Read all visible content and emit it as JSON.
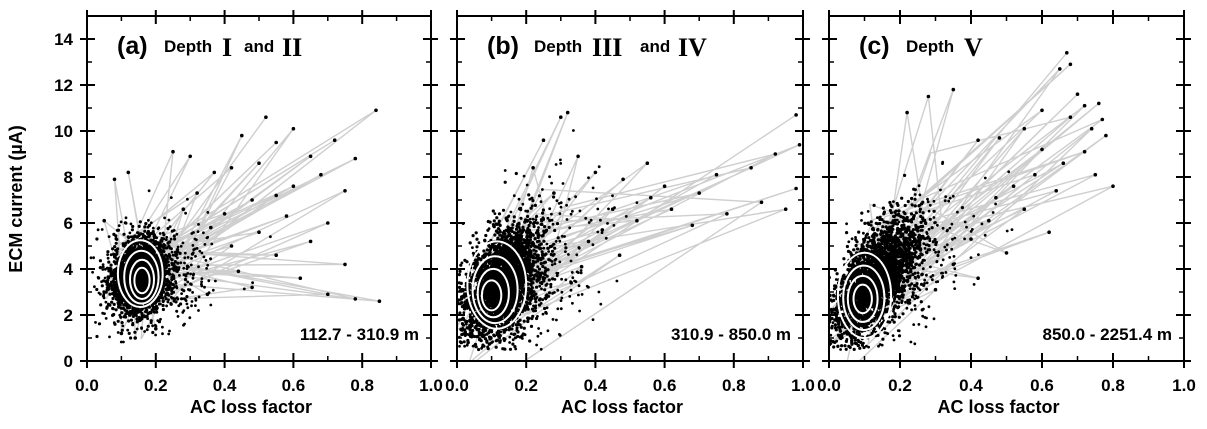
{
  "chart_data": {
    "type": "scatter",
    "xlabel": "AC loss factor",
    "ylabel": "ECM current (µA)",
    "xlim": [
      0.0,
      1.0
    ],
    "ylim": [
      0,
      15
    ],
    "x_ticks": [
      "0.0",
      "0.2",
      "0.4",
      "0.6",
      "0.8",
      "1.0"
    ],
    "y_ticks": [
      "0",
      "2",
      "4",
      "6",
      "8",
      "10",
      "12",
      "14"
    ],
    "panels": [
      {
        "letter": "(a)",
        "depth_word": "Depth",
        "roman_a": "I",
        "and_word": "and",
        "roman_b": "II",
        "range": "112.7 - 310.9 m",
        "core": {
          "x": 0.155,
          "y": 3.7,
          "sx": 0.04,
          "sy": 0.75,
          "corr": 0.15
        },
        "contours": [
          {
            "cx": 0.155,
            "cy": 3.8,
            "rx": 0.065,
            "ry": 1.45
          },
          {
            "cx": 0.158,
            "cy": 3.65,
            "rx": 0.05,
            "ry": 1.15
          },
          {
            "cx": 0.16,
            "cy": 3.55,
            "rx": 0.035,
            "ry": 0.85
          },
          {
            "cx": 0.16,
            "cy": 3.5,
            "rx": 0.022,
            "ry": 0.55
          }
        ],
        "outliers": [
          [
            0.52,
            10.6
          ],
          [
            0.84,
            10.9
          ],
          [
            0.6,
            10.1
          ],
          [
            0.72,
            9.6
          ],
          [
            0.45,
            9.8
          ],
          [
            0.55,
            9.5
          ],
          [
            0.78,
            8.8
          ],
          [
            0.65,
            8.9
          ],
          [
            0.5,
            8.6
          ],
          [
            0.42,
            8.4
          ],
          [
            0.3,
            8.9
          ],
          [
            0.25,
            9.1
          ],
          [
            0.37,
            8.2
          ],
          [
            0.68,
            8.1
          ],
          [
            0.6,
            7.6
          ],
          [
            0.55,
            7.2
          ],
          [
            0.75,
            7.4
          ],
          [
            0.48,
            7.0
          ],
          [
            0.58,
            6.3
          ],
          [
            0.7,
            6.0
          ],
          [
            0.5,
            5.6
          ],
          [
            0.65,
            5.2
          ],
          [
            0.42,
            5.0
          ],
          [
            0.55,
            4.6
          ],
          [
            0.75,
            4.2
          ],
          [
            0.62,
            3.6
          ],
          [
            0.48,
            3.2
          ],
          [
            0.78,
            2.7
          ],
          [
            0.85,
            2.6
          ],
          [
            0.7,
            2.9
          ],
          [
            0.32,
            7.3
          ],
          [
            0.28,
            6.6
          ],
          [
            0.4,
            6.4
          ],
          [
            0.36,
            5.8
          ],
          [
            0.44,
            3.9
          ],
          [
            0.35,
            2.9
          ],
          [
            0.08,
            7.9
          ],
          [
            0.12,
            8.2
          ],
          [
            0.1,
            1.2
          ],
          [
            0.14,
            1.0
          ],
          [
            0.2,
            1.4
          ],
          [
            0.05,
            6.1
          ]
        ]
      },
      {
        "letter": "(b)",
        "depth_word": "Depth",
        "roman_a": "III",
        "and_word": "and",
        "roman_b": "IV",
        "range": "310.9 - 850.0 m",
        "core": {
          "x": 0.13,
          "y": 3.4,
          "sx": 0.055,
          "sy": 1.2,
          "corr": 0.45
        },
        "contours": [
          {
            "cx": 0.115,
            "cy": 3.3,
            "rx": 0.085,
            "ry": 1.9
          },
          {
            "cx": 0.11,
            "cy": 3.1,
            "rx": 0.065,
            "ry": 1.45
          },
          {
            "cx": 0.105,
            "cy": 2.95,
            "rx": 0.045,
            "ry": 1.05
          },
          {
            "cx": 0.1,
            "cy": 2.85,
            "rx": 0.028,
            "ry": 0.65
          }
        ],
        "outliers": [
          [
            0.98,
            10.7
          ],
          [
            0.99,
            9.4
          ],
          [
            0.92,
            9.0
          ],
          [
            0.85,
            8.4
          ],
          [
            0.75,
            8.1
          ],
          [
            0.98,
            7.5
          ],
          [
            0.95,
            6.6
          ],
          [
            0.88,
            6.9
          ],
          [
            0.7,
            7.3
          ],
          [
            0.6,
            7.6
          ],
          [
            0.55,
            8.6
          ],
          [
            0.48,
            7.9
          ],
          [
            0.4,
            8.2
          ],
          [
            0.35,
            8.9
          ],
          [
            0.3,
            10.6
          ],
          [
            0.32,
            10.8
          ],
          [
            0.45,
            6.6
          ],
          [
            0.52,
            6.1
          ],
          [
            0.42,
            5.7
          ],
          [
            0.38,
            5.2
          ],
          [
            0.47,
            4.6
          ],
          [
            0.36,
            4.1
          ],
          [
            0.33,
            3.4
          ],
          [
            0.62,
            6.6
          ],
          [
            0.78,
            6.4
          ],
          [
            0.68,
            5.9
          ],
          [
            0.28,
            7.3
          ],
          [
            0.25,
            9.6
          ],
          [
            0.22,
            8.4
          ],
          [
            0.56,
            7.1
          ]
        ]
      },
      {
        "letter": "(c)",
        "depth_word": "Depth",
        "roman_a": "V",
        "and_word": "",
        "roman_b": "",
        "range": "850.0 - 2251.4 m",
        "core": {
          "x": 0.13,
          "y": 3.5,
          "sx": 0.06,
          "sy": 1.35,
          "corr": 0.65
        },
        "contours": [
          {
            "cx": 0.1,
            "cy": 2.85,
            "rx": 0.075,
            "ry": 1.85
          },
          {
            "cx": 0.098,
            "cy": 2.75,
            "rx": 0.058,
            "ry": 1.4
          },
          {
            "cx": 0.095,
            "cy": 2.7,
            "rx": 0.042,
            "ry": 1.0
          },
          {
            "cx": 0.095,
            "cy": 2.7,
            "rx": 0.026,
            "ry": 0.62
          }
        ],
        "outliers": [
          [
            0.67,
            13.4
          ],
          [
            0.68,
            12.9
          ],
          [
            0.65,
            12.7
          ],
          [
            0.7,
            11.6
          ],
          [
            0.72,
            11.1
          ],
          [
            0.76,
            11.2
          ],
          [
            0.77,
            10.5
          ],
          [
            0.74,
            10.1
          ],
          [
            0.78,
            9.8
          ],
          [
            0.68,
            10.6
          ],
          [
            0.6,
            10.9
          ],
          [
            0.55,
            10.1
          ],
          [
            0.48,
            9.7
          ],
          [
            0.42,
            9.6
          ],
          [
            0.35,
            11.8
          ],
          [
            0.28,
            11.5
          ],
          [
            0.22,
            10.8
          ],
          [
            0.72,
            9.1
          ],
          [
            0.8,
            7.6
          ],
          [
            0.75,
            8.1
          ],
          [
            0.66,
            8.6
          ],
          [
            0.58,
            8.1
          ],
          [
            0.52,
            7.6
          ],
          [
            0.47,
            7.1
          ],
          [
            0.55,
            6.6
          ],
          [
            0.45,
            6.1
          ],
          [
            0.62,
            5.6
          ],
          [
            0.4,
            5.3
          ],
          [
            0.5,
            4.7
          ],
          [
            0.35,
            4.2
          ],
          [
            0.42,
            3.6
          ],
          [
            0.3,
            3.1
          ],
          [
            0.6,
            9.2
          ],
          [
            0.64,
            7.4
          ]
        ]
      }
    ]
  }
}
